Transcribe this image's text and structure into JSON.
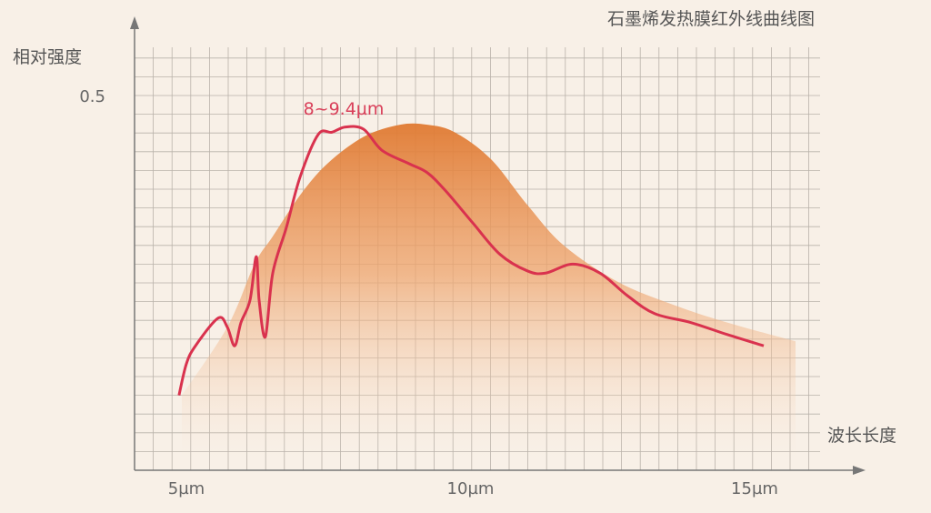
{
  "chart_data": {
    "type": "line",
    "title": "石墨烯发热膜红外线曲线图",
    "xlabel": "波长长度",
    "ylabel": "相对强度",
    "x_ticks": [
      "5µm",
      "10µm",
      "15µm"
    ],
    "x_tick_values": [
      5,
      10,
      15
    ],
    "y_ticks": [
      "0.5"
    ],
    "y_tick_values": [
      0.5
    ],
    "xlim": [
      4.1,
      16.1
    ],
    "ylim": [
      0,
      0.56
    ],
    "grid": true,
    "annotation": {
      "text": "8~9.4µm"
    },
    "colors": {
      "line": "#d9324e",
      "area": "#e8843e",
      "background": "#f8f0e7"
    },
    "series": [
      {
        "kind": "line",
        "x": [
          4.87,
          5.0,
          5.16,
          5.56,
          5.72,
          5.85,
          5.96,
          6.12,
          6.23,
          6.28,
          6.39,
          6.52,
          6.76,
          7.0,
          7.32,
          7.56,
          7.8,
          8.12,
          8.44,
          8.92,
          9.24,
          9.56,
          10.04,
          10.52,
          11.0,
          11.32,
          11.8,
          12.28,
          12.76,
          13.24,
          13.88,
          14.52,
          15.16
        ],
        "y": [
          0.1,
          0.142,
          0.166,
          0.203,
          0.191,
          0.166,
          0.197,
          0.227,
          0.285,
          0.227,
          0.178,
          0.263,
          0.324,
          0.391,
          0.448,
          0.451,
          0.458,
          0.455,
          0.427,
          0.409,
          0.397,
          0.373,
          0.33,
          0.288,
          0.266,
          0.263,
          0.275,
          0.263,
          0.233,
          0.209,
          0.197,
          0.181,
          0.166
        ]
      },
      {
        "kind": "area",
        "x": [
          4.92,
          5.72,
          6.2,
          6.52,
          7.0,
          7.48,
          8.12,
          8.76,
          9.24,
          9.72,
          10.36,
          11.0,
          11.64,
          12.6,
          13.56,
          14.52,
          15.72
        ],
        "y": [
          0.1,
          0.191,
          0.275,
          0.312,
          0.367,
          0.409,
          0.445,
          0.461,
          0.461,
          0.451,
          0.415,
          0.354,
          0.3,
          0.251,
          0.221,
          0.197,
          0.172
        ]
      }
    ]
  }
}
